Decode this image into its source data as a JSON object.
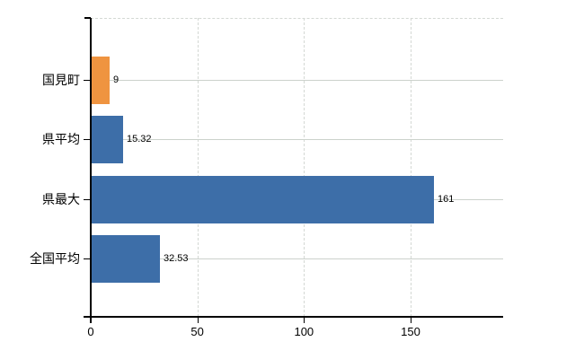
{
  "chart_data": {
    "type": "bar",
    "orientation": "horizontal",
    "title": "",
    "xlabel": "",
    "ylabel": "",
    "categories": [
      "国見町",
      "県平均",
      "県最大",
      "全国平均"
    ],
    "values": [
      9,
      15.32,
      161,
      32.53
    ],
    "value_labels": [
      "9",
      "15.32",
      "161",
      "32.53"
    ],
    "bar_colors": [
      "#ef9440",
      "#3d6ea8",
      "#3d6ea8",
      "#3d6ea8"
    ],
    "x_ticks": [
      0,
      50,
      100,
      150
    ],
    "x_tick_labels": [
      "0",
      "50",
      "100",
      "150"
    ],
    "xlim": [
      0,
      193
    ],
    "grid": true,
    "legend_position": "none",
    "colors": {
      "grid": "#ccd2cc",
      "axis": "#000000",
      "text": "#000000",
      "background": "#ffffff",
      "highlight_bar": "#ef9440",
      "default_bar": "#3d6ea8"
    }
  }
}
